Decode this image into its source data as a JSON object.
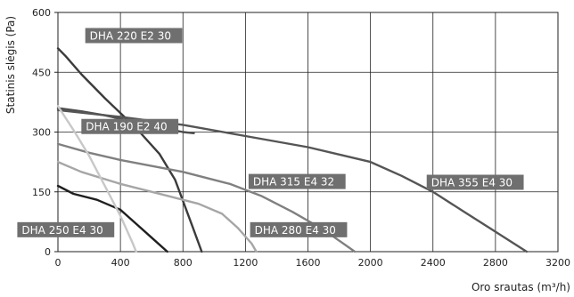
{
  "chart_data": {
    "type": "line",
    "xlabel": "Oro srautas (m³/h)",
    "ylabel": "Statinis slėgis (Pa)",
    "xlim": [
      0,
      3200
    ],
    "ylim": [
      0,
      600
    ],
    "x_ticks": [
      0,
      400,
      800,
      1200,
      1600,
      2000,
      2400,
      2800,
      3200
    ],
    "y_ticks": [
      0,
      150,
      300,
      450,
      600
    ],
    "grid": true,
    "series": [
      {
        "name": "DHA 220 E2 30",
        "color": "#3b3b3b",
        "points": [
          [
            0,
            510
          ],
          [
            50,
            490
          ],
          [
            150,
            445
          ],
          [
            300,
            385
          ],
          [
            500,
            310
          ],
          [
            650,
            245
          ],
          [
            750,
            180
          ],
          [
            850,
            75
          ],
          [
            920,
            0
          ]
        ]
      },
      {
        "name": "DHA 190 E2 40",
        "color": "#4d4d4d",
        "points": [
          [
            0,
            360
          ],
          [
            150,
            352
          ],
          [
            300,
            342
          ],
          [
            400,
            333
          ],
          [
            500,
            325
          ],
          [
            600,
            317
          ],
          [
            700,
            308
          ],
          [
            800,
            300
          ],
          [
            870,
            297
          ]
        ]
      },
      {
        "name": "DHA 355 E4 30",
        "color": "#555555",
        "points": [
          [
            0,
            355
          ],
          [
            400,
            338
          ],
          [
            800,
            318
          ],
          [
            1200,
            290
          ],
          [
            1600,
            262
          ],
          [
            2000,
            225
          ],
          [
            2200,
            190
          ],
          [
            2400,
            150
          ],
          [
            2600,
            100
          ],
          [
            2800,
            50
          ],
          [
            3000,
            0
          ]
        ]
      },
      {
        "name": "DHA 315 E4 32",
        "color": "#808080",
        "points": [
          [
            0,
            270
          ],
          [
            200,
            248
          ],
          [
            400,
            230
          ],
          [
            800,
            200
          ],
          [
            1100,
            170
          ],
          [
            1300,
            140
          ],
          [
            1500,
            100
          ],
          [
            1700,
            55
          ],
          [
            1900,
            0
          ]
        ]
      },
      {
        "name": "DHA 280 E4 30",
        "color": "#a6a6a6",
        "points": [
          [
            0,
            225
          ],
          [
            150,
            200
          ],
          [
            400,
            170
          ],
          [
            700,
            140
          ],
          [
            900,
            120
          ],
          [
            1050,
            95
          ],
          [
            1150,
            60
          ],
          [
            1240,
            20
          ],
          [
            1270,
            0
          ]
        ]
      },
      {
        "name": "DHA 250 E4 30",
        "color": "#1f1f1f",
        "points": [
          [
            0,
            165
          ],
          [
            100,
            145
          ],
          [
            250,
            130
          ],
          [
            400,
            105
          ],
          [
            500,
            70
          ],
          [
            600,
            35
          ],
          [
            700,
            0
          ]
        ]
      },
      {
        "name": "",
        "color": "#c8c8c8",
        "points": [
          [
            0,
            365
          ],
          [
            100,
            305
          ],
          [
            200,
            240
          ],
          [
            300,
            165
          ],
          [
            400,
            90
          ],
          [
            480,
            20
          ],
          [
            500,
            0
          ]
        ]
      }
    ],
    "labels": [
      {
        "text": "DHA 220 E2 30",
        "series": "DHA 220 E2 30",
        "x": 175,
        "y": 542
      },
      {
        "text": "DHA 190 E2 40",
        "series": "DHA 190 E2 40",
        "x": 150,
        "y": 314
      },
      {
        "text": "DHA 315 E4 32",
        "series": "DHA 315 E4 32",
        "x": 1220,
        "y": 176
      },
      {
        "text": "DHA 355 E4 30",
        "series": "DHA 355 E4 30",
        "x": 2360,
        "y": 174
      },
      {
        "text": "DHA 280 E4 30",
        "series": "DHA 280 E4 30",
        "x": 1230,
        "y": 55
      },
      {
        "text": "DHA 250 E4 30",
        "series": "DHA 250 E4 30",
        "x": -260,
        "y": 55
      }
    ]
  }
}
